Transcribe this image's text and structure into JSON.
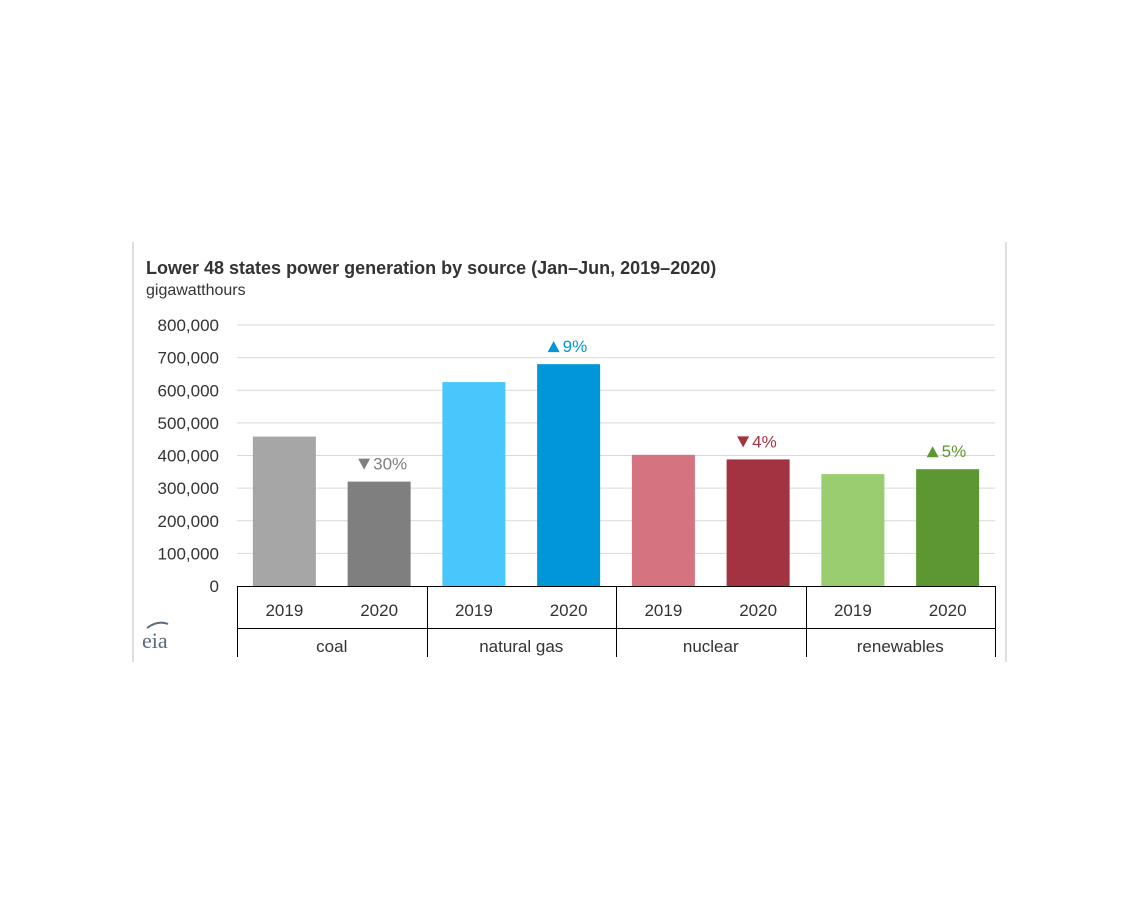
{
  "chart_data": {
    "type": "bar",
    "title": "Lower 48 states power generation by source (Jan–Jun, 2019–2020)",
    "subtitle": "gigawatthours",
    "ylim": [
      0,
      800000
    ],
    "yticks": [
      0,
      100000,
      200000,
      300000,
      400000,
      500000,
      600000,
      700000,
      800000
    ],
    "ytick_labels": [
      "0",
      "100,000",
      "200,000",
      "300,000",
      "400,000",
      "500,000",
      "600,000",
      "700,000",
      "800,000"
    ],
    "grid": true,
    "groups": [
      {
        "name": "coal",
        "annotation": {
          "text": "30%",
          "direction": "down",
          "color": "#808080"
        },
        "bars": [
          {
            "year": "2019",
            "value": 458000,
            "color": "#a6a6a6"
          },
          {
            "year": "2020",
            "value": 320000,
            "color": "#7f7f7f"
          }
        ]
      },
      {
        "name": "natural gas",
        "annotation": {
          "text": "9%",
          "direction": "up",
          "color": "#0096d7"
        },
        "bars": [
          {
            "year": "2019",
            "value": 625000,
            "color": "#47c7fc"
          },
          {
            "year": "2020",
            "value": 680000,
            "color": "#0096d7"
          }
        ]
      },
      {
        "name": "nuclear",
        "annotation": {
          "text": "4%",
          "direction": "down",
          "color": "#a33340"
        },
        "bars": [
          {
            "year": "2019",
            "value": 402000,
            "color": "#d57480"
          },
          {
            "year": "2020",
            "value": 388000,
            "color": "#a33340"
          }
        ]
      },
      {
        "name": "renewables",
        "annotation": {
          "text": "5%",
          "direction": "up",
          "color": "#5d9732"
        },
        "bars": [
          {
            "year": "2019",
            "value": 343000,
            "color": "#9acd70"
          },
          {
            "year": "2020",
            "value": 358000,
            "color": "#5d9732"
          }
        ]
      }
    ]
  },
  "logo": {
    "text": "eia",
    "color": "#5a6b7b"
  }
}
